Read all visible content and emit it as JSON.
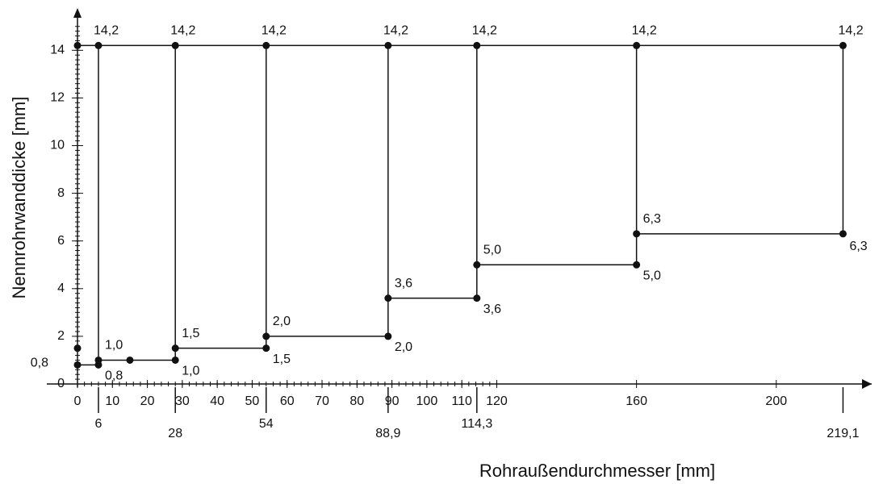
{
  "chart_data": {
    "type": "step-line",
    "x_label": "Rohraußendurchmesser [mm]",
    "y_label": "Nennrohrwanddicke  [mm]",
    "xlim": [
      0,
      225
    ],
    "ylim": [
      0,
      15.5
    ],
    "xticks": [
      0,
      10,
      20,
      30,
      40,
      50,
      60,
      70,
      80,
      90,
      100,
      110,
      120,
      160,
      200
    ],
    "xticks2": [
      6,
      28,
      54,
      {
        "value": 88.9,
        "label": "88,9"
      },
      {
        "value": 114.3,
        "label": "114,3"
      },
      {
        "value": 219.1,
        "label": "219,1"
      }
    ],
    "yticks": [
      0,
      2,
      4,
      6,
      8,
      10,
      12,
      14
    ],
    "color": "#111111",
    "series": [
      {
        "x": [
          0,
          6,
          28,
          54,
          88.9,
          114.3,
          160,
          219.1
        ],
        "values": [
          14.2,
          14.2,
          14.2,
          14.2,
          14.2,
          14.2,
          14.2,
          14.2
        ],
        "value_labels": [
          null,
          "14,2",
          "14,2",
          "14,2",
          "14,2",
          "14,2",
          "14,2",
          "14,2"
        ]
      },
      {
        "x": [
          0,
          6,
          6,
          15,
          28,
          28,
          54,
          54,
          88.9,
          88.9,
          114.3,
          114.3,
          160,
          160,
          219.1
        ],
        "values": [
          0.8,
          0.8,
          1.0,
          1.0,
          1.0,
          1.5,
          1.5,
          2.0,
          2.0,
          3.6,
          3.6,
          5.0,
          5.0,
          6.3,
          6.3
        ],
        "value_labels": [
          "0,8",
          "0,8",
          "1,0",
          null,
          "1,0",
          "1,5",
          "1,5",
          "2,0",
          "2,0",
          "3,6",
          "3,6",
          "5,0",
          "5,0",
          "6,3",
          "6,3"
        ]
      },
      {
        "x": [
          0
        ],
        "values": [
          1.5
        ],
        "line": false
      }
    ]
  }
}
